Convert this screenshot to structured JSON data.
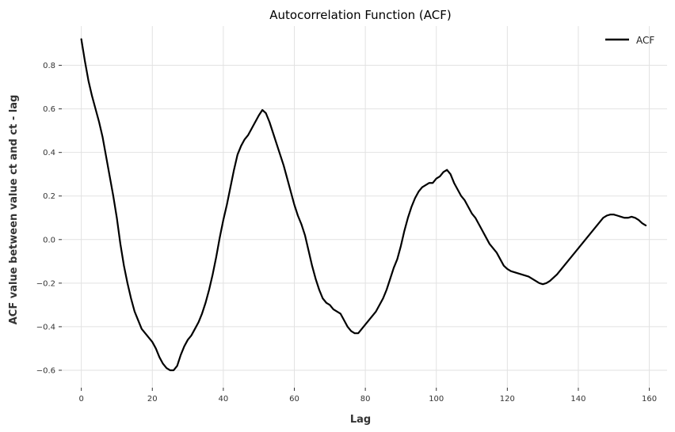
{
  "chart_data": {
    "type": "line",
    "title": "Autocorrelation Function (ACF)",
    "xlabel": "Lag",
    "ylabel": "ACF value between value ct and ct - lag",
    "xlim": [
      -5.5,
      165
    ],
    "ylim": [
      -0.68,
      0.98
    ],
    "xticks": [
      0,
      20,
      40,
      60,
      80,
      100,
      120,
      140,
      160
    ],
    "yticks": [
      -0.6,
      -0.4,
      -0.2,
      0.0,
      0.2,
      0.4,
      0.6,
      0.8
    ],
    "xtick_labels": [
      "0",
      "20",
      "40",
      "60",
      "80",
      "100",
      "120",
      "140",
      "160"
    ],
    "ytick_labels": [
      "−0.6",
      "−0.4",
      "−0.2",
      "0.0",
      "0.2",
      "0.4",
      "0.6",
      "0.8"
    ],
    "grid": true,
    "legend_position": "top-right",
    "color": "#000000",
    "series": [
      {
        "name": "ACF",
        "x": [
          0,
          1,
          2,
          3,
          4,
          5,
          6,
          7,
          8,
          9,
          10,
          11,
          12,
          13,
          14,
          15,
          16,
          17,
          18,
          19,
          20,
          21,
          22,
          23,
          24,
          25,
          26,
          27,
          28,
          29,
          30,
          31,
          32,
          33,
          34,
          35,
          36,
          37,
          38,
          39,
          40,
          41,
          42,
          43,
          44,
          45,
          46,
          47,
          48,
          49,
          50,
          51,
          52,
          53,
          54,
          55,
          56,
          57,
          58,
          59,
          60,
          61,
          62,
          63,
          64,
          65,
          66,
          67,
          68,
          69,
          70,
          71,
          72,
          73,
          74,
          75,
          76,
          77,
          78,
          79,
          80,
          81,
          82,
          83,
          84,
          85,
          86,
          87,
          88,
          89,
          90,
          91,
          92,
          93,
          94,
          95,
          96,
          97,
          98,
          99,
          100,
          101,
          102,
          103,
          104,
          105,
          106,
          107,
          108,
          109,
          110,
          111,
          112,
          113,
          114,
          115,
          116,
          117,
          118,
          119,
          120,
          121,
          122,
          123,
          124,
          125,
          126,
          127,
          128,
          129,
          130,
          131,
          132,
          133,
          134,
          135,
          136,
          137,
          138,
          139,
          140,
          141,
          142,
          143,
          144,
          145,
          146,
          147,
          148,
          149,
          150,
          151,
          152,
          153,
          154,
          155,
          156,
          157,
          158,
          159
        ],
        "values": [
          0.92,
          0.82,
          0.73,
          0.66,
          0.6,
          0.54,
          0.47,
          0.38,
          0.29,
          0.2,
          0.1,
          -0.02,
          -0.12,
          -0.2,
          -0.27,
          -0.33,
          -0.37,
          -0.41,
          -0.43,
          -0.45,
          -0.47,
          -0.5,
          -0.54,
          -0.57,
          -0.59,
          -0.6,
          -0.6,
          -0.58,
          -0.53,
          -0.49,
          -0.46,
          -0.44,
          -0.41,
          -0.38,
          -0.34,
          -0.29,
          -0.23,
          -0.16,
          -0.08,
          0.01,
          0.09,
          0.16,
          0.24,
          0.32,
          0.39,
          0.43,
          0.46,
          0.48,
          0.51,
          0.54,
          0.57,
          0.595,
          0.58,
          0.54,
          0.49,
          0.44,
          0.39,
          0.34,
          0.28,
          0.22,
          0.16,
          0.11,
          0.07,
          0.02,
          -0.05,
          -0.12,
          -0.18,
          -0.23,
          -0.27,
          -0.29,
          -0.3,
          -0.32,
          -0.33,
          -0.34,
          -0.37,
          -0.4,
          -0.42,
          -0.43,
          -0.43,
          -0.41,
          -0.39,
          -0.37,
          -0.35,
          -0.33,
          -0.3,
          -0.27,
          -0.23,
          -0.18,
          -0.13,
          -0.09,
          -0.03,
          0.04,
          0.1,
          0.15,
          0.19,
          0.22,
          0.24,
          0.25,
          0.26,
          0.26,
          0.28,
          0.29,
          0.31,
          0.32,
          0.3,
          0.26,
          0.23,
          0.2,
          0.18,
          0.15,
          0.12,
          0.1,
          0.07,
          0.04,
          0.01,
          -0.02,
          -0.04,
          -0.06,
          -0.09,
          -0.12,
          -0.135,
          -0.145,
          -0.15,
          -0.155,
          -0.16,
          -0.165,
          -0.17,
          -0.18,
          -0.19,
          -0.2,
          -0.205,
          -0.2,
          -0.19,
          -0.175,
          -0.16,
          -0.14,
          -0.12,
          -0.1,
          -0.08,
          -0.06,
          -0.04,
          -0.02,
          0.0,
          0.02,
          0.04,
          0.06,
          0.08,
          0.1,
          0.11,
          0.115,
          0.115,
          0.11,
          0.105,
          0.1,
          0.1,
          0.105,
          0.1,
          0.09,
          0.075,
          0.065
        ]
      }
    ]
  }
}
